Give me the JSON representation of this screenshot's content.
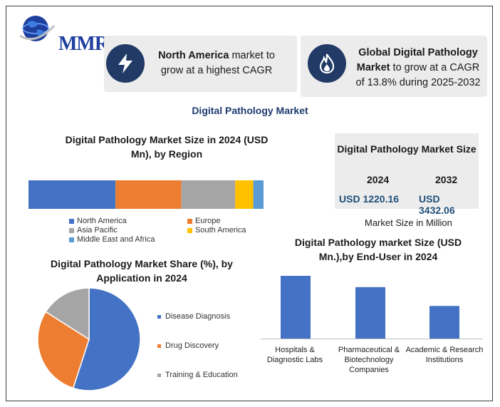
{
  "brand": {
    "name": "MMR"
  },
  "cards": [
    {
      "bold": "North America",
      "rest": " market to grow at a highest CAGR",
      "icon": "lightning-icon"
    },
    {
      "bold": "Global Digital Pathology Market",
      "rest": " to grow at a CAGR of 13.8% during 2025-2032",
      "icon": "flame-icon"
    }
  ],
  "main_title": "Digital Pathology Market",
  "market_size": {
    "title": "Digital Pathology Market Size",
    "year1": "2024",
    "year2": "2032",
    "value1": "USD 1220.16",
    "value2": "USD 3432.06",
    "note": "Market Size in Million"
  },
  "colors": {
    "blue": "#4472c4",
    "orange": "#ed7d31",
    "gray": "#a5a5a5",
    "yellow": "#ffc000",
    "lightblue": "#5b9bd5"
  },
  "chart_data": [
    {
      "type": "bar",
      "orientation": "horizontal-stacked",
      "title": "Digital Pathology Market Size  in 2024 (USD Mn), by Region",
      "series": [
        {
          "name": "North America",
          "values": [
            37.4
          ],
          "color": "#4472c4"
        },
        {
          "name": "Europe",
          "values": [
            28.3
          ],
          "color": "#ed7d31"
        },
        {
          "name": "Asia Pacific",
          "values": [
            23.1
          ],
          "color": "#a5a5a5"
        },
        {
          "name": "South America",
          "values": [
            7.8
          ],
          "color": "#ffc000"
        },
        {
          "name": "Middle East and Africa",
          "values": [
            4.4
          ],
          "color": "#5b9bd5"
        }
      ]
    },
    {
      "type": "pie",
      "title": "Digital Pathology Market Share (%), by Application in 2024",
      "labels": [
        "Disease Diagnosis",
        "Drug Discovery",
        "Training & Education"
      ],
      "values": [
        55,
        29,
        16
      ],
      "colors": [
        "#4472c4",
        "#ed7d31",
        "#a5a5a5"
      ]
    },
    {
      "type": "bar",
      "title": "Digital Pathology market Size (USD Mn.),by End-User in 2024",
      "categories": [
        "Hospitals & Diagnostic Labs",
        "Pharmaceutical & Biotechnology Companies",
        "Academic & Research Institutions"
      ],
      "category_lines": [
        [
          "Hospitals &",
          "Diagnostic Labs"
        ],
        [
          "Pharmaceutical &",
          "Biotechnology",
          "Companies"
        ],
        [
          "Academic & Research",
          "Institutions"
        ]
      ],
      "values": [
        100,
        82,
        52
      ],
      "color": "#4472c4"
    }
  ]
}
